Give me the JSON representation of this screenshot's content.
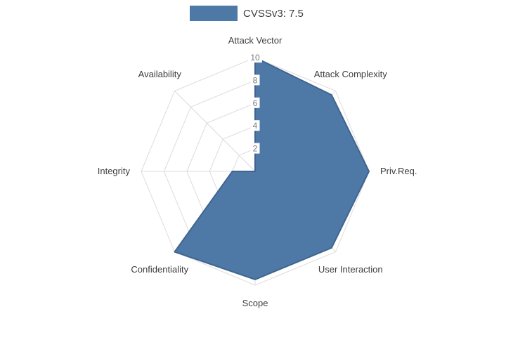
{
  "legend": {
    "label": "CVSSv3: 7.5",
    "swatch_color": "#4e79a7"
  },
  "chart_data": {
    "type": "radar",
    "title": "",
    "categories": [
      "Attack Vector",
      "Attack Complexity",
      "Priv.Req.",
      "User Interaction",
      "Scope",
      "Confidentiality",
      "Integrity",
      "Availability"
    ],
    "series": [
      {
        "name": "CVSSv3: 7.5",
        "values": [
          10,
          9.5,
          10,
          9.5,
          9.5,
          10,
          2,
          0
        ]
      }
    ],
    "ticks": [
      2,
      4,
      6,
      8,
      10
    ],
    "rmax": 10,
    "grid": true,
    "legend_position": "top",
    "fill_color": "#4e79a7",
    "line_color": "#3f648f",
    "grid_color": "#dcdcdc",
    "label_color": "#3d3d3d",
    "tick_color": "#7b7b7b",
    "tick_bg_color": "#ffffff"
  }
}
